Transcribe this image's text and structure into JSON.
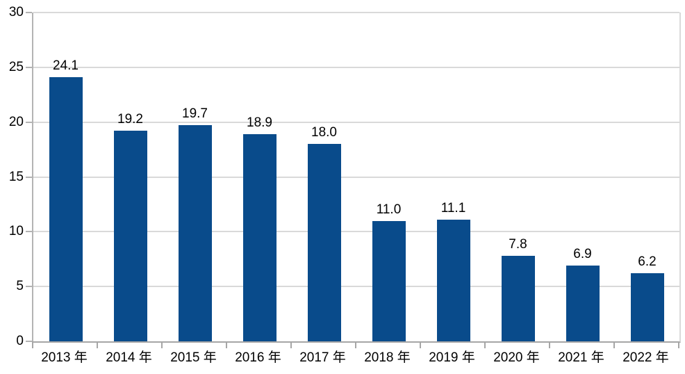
{
  "chart_data": {
    "type": "bar",
    "title": "",
    "xlabel": "",
    "ylabel": "",
    "categories": [
      "2013 年",
      "2014 年",
      "2015 年",
      "2016 年",
      "2017 年",
      "2018 年",
      "2019 年",
      "2020 年",
      "2021 年",
      "2022 年"
    ],
    "values": [
      24.1,
      19.2,
      19.7,
      18.9,
      18.0,
      11.0,
      11.1,
      7.8,
      6.9,
      6.2
    ],
    "value_labels": [
      "24.1",
      "19.2",
      "19.7",
      "18.9",
      "18.0",
      "11.0",
      "11.1",
      "7.8",
      "6.9",
      "6.2"
    ],
    "ylim": [
      0,
      30
    ],
    "yticks": [
      0,
      5,
      10,
      15,
      20,
      25,
      30
    ],
    "grid": true,
    "legend": "none"
  },
  "colors": {
    "bar": "#094b8b",
    "gridline": "#d9d9d9",
    "axis": "#a6a6a6",
    "y_axis_line": "#b3b3b3",
    "text": "#000000",
    "background": "#ffffff"
  }
}
